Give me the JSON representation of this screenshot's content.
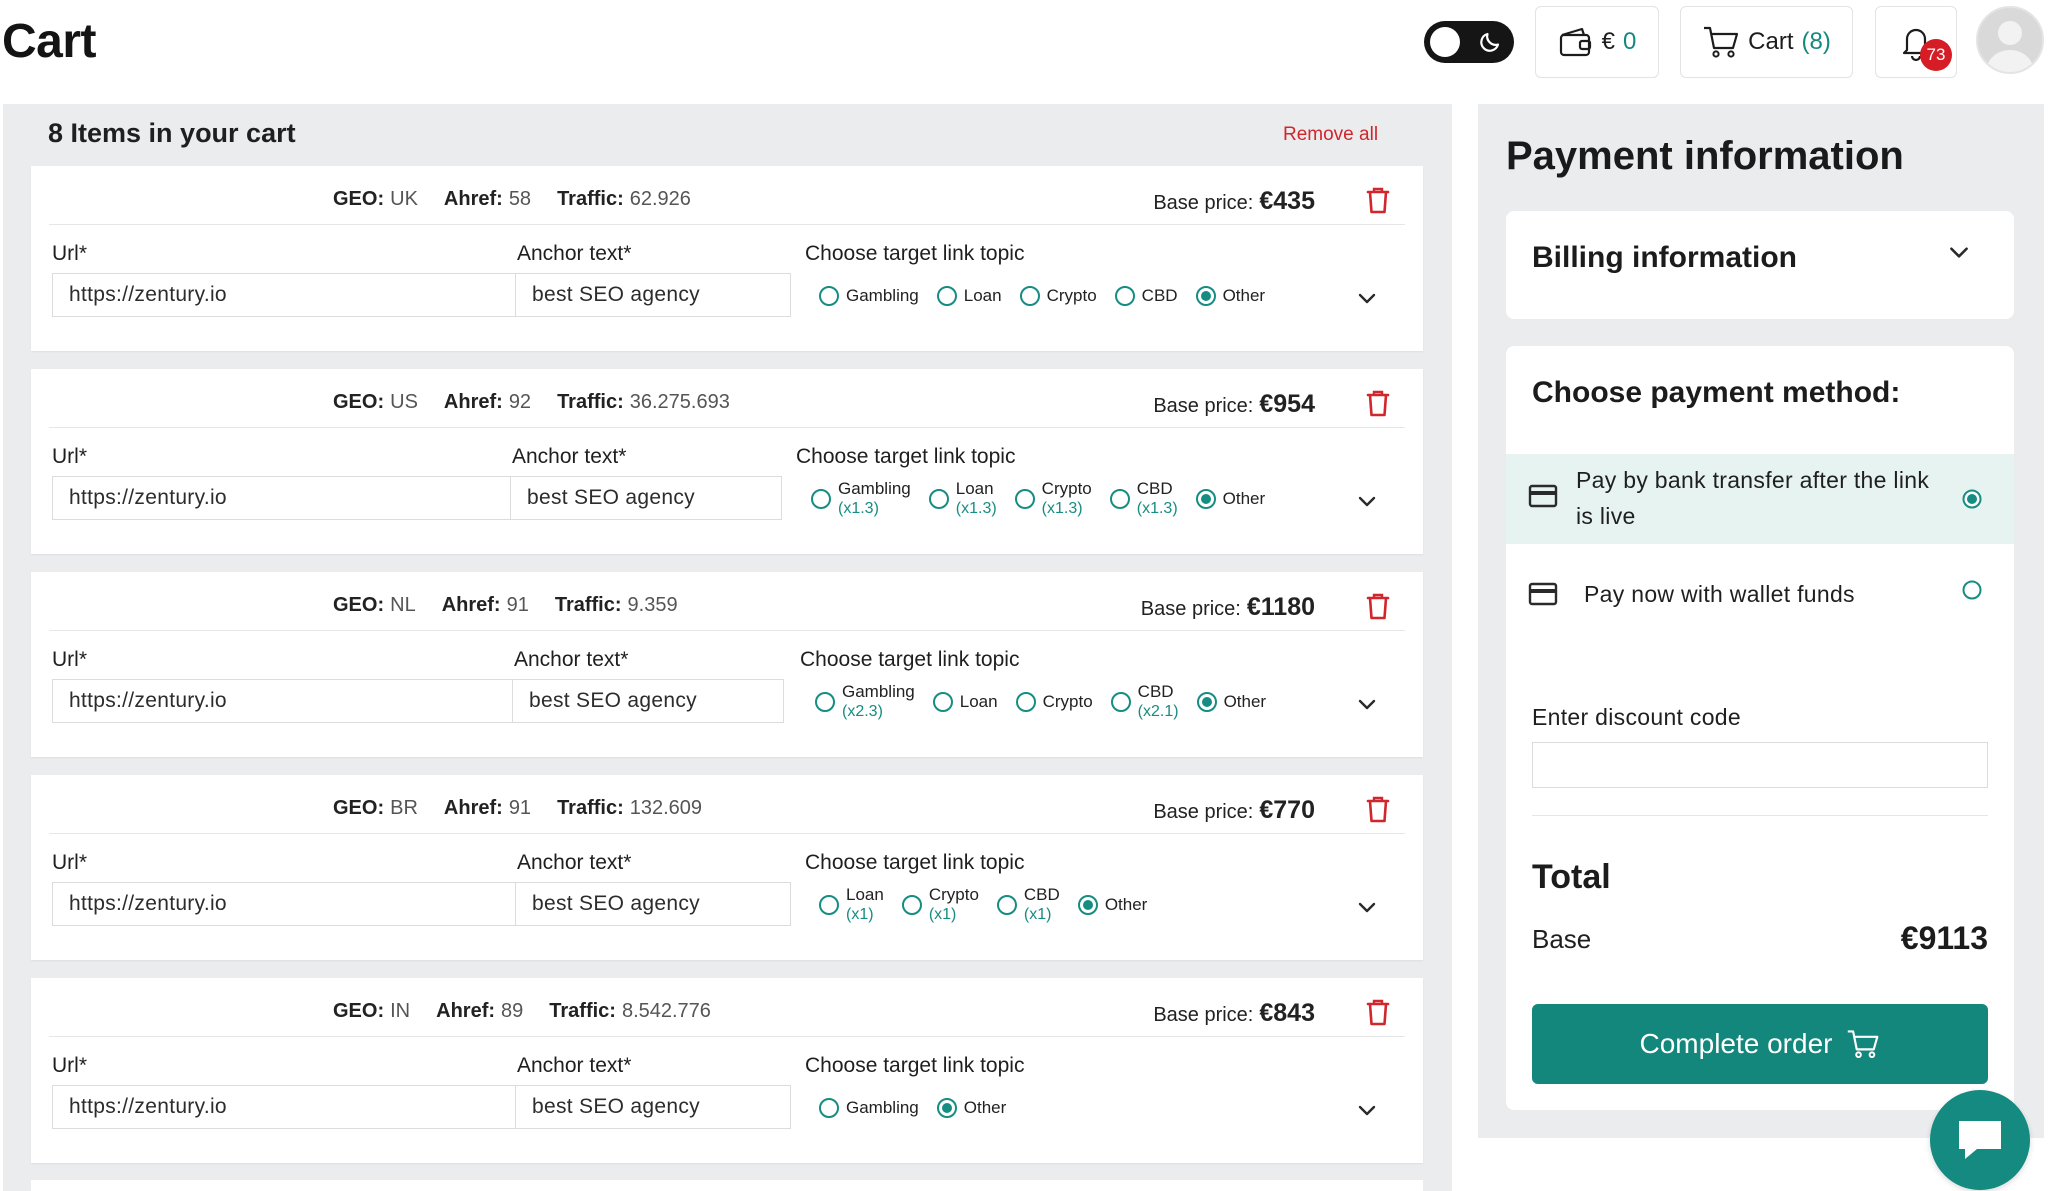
{
  "header": {
    "title": "Cart",
    "wallet_prefix": "€",
    "wallet_value": "0",
    "cart_label": "Cart",
    "cart_count": "(8)",
    "notification_count": "73"
  },
  "cart": {
    "count_label": "8 Items in your cart",
    "remove_all": "Remove all",
    "labels": {
      "geo": "GEO:",
      "ahref": "Ahref:",
      "traffic": "Traffic:",
      "base_price": "Base price:",
      "url": "Url*",
      "anchor": "Anchor text*",
      "topic": "Choose target link topic"
    },
    "items": [
      {
        "geo": "UK",
        "ahref": "58",
        "traffic": "62.926",
        "price": "€435",
        "url": "https://zentury.io",
        "anchor": "best SEO agency",
        "topics": [
          {
            "name": "Gambling",
            "mult": ""
          },
          {
            "name": "Loan",
            "mult": ""
          },
          {
            "name": "Crypto",
            "mult": ""
          },
          {
            "name": "CBD",
            "mult": ""
          },
          {
            "name": "Other",
            "mult": "",
            "selected": true
          }
        ]
      },
      {
        "geo": "US",
        "ahref": "92",
        "traffic": "36.275.693",
        "price": "€954",
        "url": "https://zentury.io",
        "anchor": "best SEO agency",
        "topics": [
          {
            "name": "Gambling",
            "mult": "(x1.3)"
          },
          {
            "name": "Loan",
            "mult": "(x1.3)"
          },
          {
            "name": "Crypto",
            "mult": "(x1.3)"
          },
          {
            "name": "CBD",
            "mult": "(x1.3)"
          },
          {
            "name": "Other",
            "mult": "",
            "selected": true
          }
        ]
      },
      {
        "geo": "NL",
        "ahref": "91",
        "traffic": "9.359",
        "price": "€1180",
        "url": "https://zentury.io",
        "anchor": "best SEO agency",
        "topics": [
          {
            "name": "Gambling",
            "mult": "(x2.3)"
          },
          {
            "name": "Loan",
            "mult": ""
          },
          {
            "name": "Crypto",
            "mult": ""
          },
          {
            "name": "CBD",
            "mult": "(x2.1)"
          },
          {
            "name": "Other",
            "mult": "",
            "selected": true
          }
        ]
      },
      {
        "geo": "BR",
        "ahref": "91",
        "traffic": "132.609",
        "price": "€770",
        "url": "https://zentury.io",
        "anchor": "best SEO agency",
        "topics": [
          {
            "name": "Loan",
            "mult": "(x1)"
          },
          {
            "name": "Crypto",
            "mult": "(x1)"
          },
          {
            "name": "CBD",
            "mult": "(x1)"
          },
          {
            "name": "Other",
            "mult": "",
            "selected": true
          }
        ]
      },
      {
        "geo": "IN",
        "ahref": "89",
        "traffic": "8.542.776",
        "price": "€843",
        "url": "https://zentury.io",
        "anchor": "best SEO agency",
        "topics": [
          {
            "name": "Gambling",
            "mult": ""
          },
          {
            "name": "Other",
            "mult": "",
            "selected": true
          }
        ]
      }
    ]
  },
  "payment": {
    "title": "Payment information",
    "billing_title": "Billing information",
    "method_title": "Choose payment method:",
    "methods": [
      {
        "label": "Pay by bank transfer after the link is live",
        "selected": true
      },
      {
        "label": "Pay now with wallet funds",
        "selected": false
      }
    ],
    "discount_label": "Enter discount code",
    "discount_value": "",
    "total_title": "Total",
    "base_label": "Base",
    "base_value": "€9113",
    "complete_button": "Complete order"
  },
  "colors": {
    "accent": "#13877c",
    "danger": "#d0262c",
    "panel": "#ebecee"
  },
  "icons": [
    "moon-icon",
    "wallet-icon",
    "cart-icon",
    "bell-icon",
    "avatar-icon",
    "trash-icon",
    "chevron-down-icon",
    "credit-card-icon",
    "chat-icon"
  ]
}
